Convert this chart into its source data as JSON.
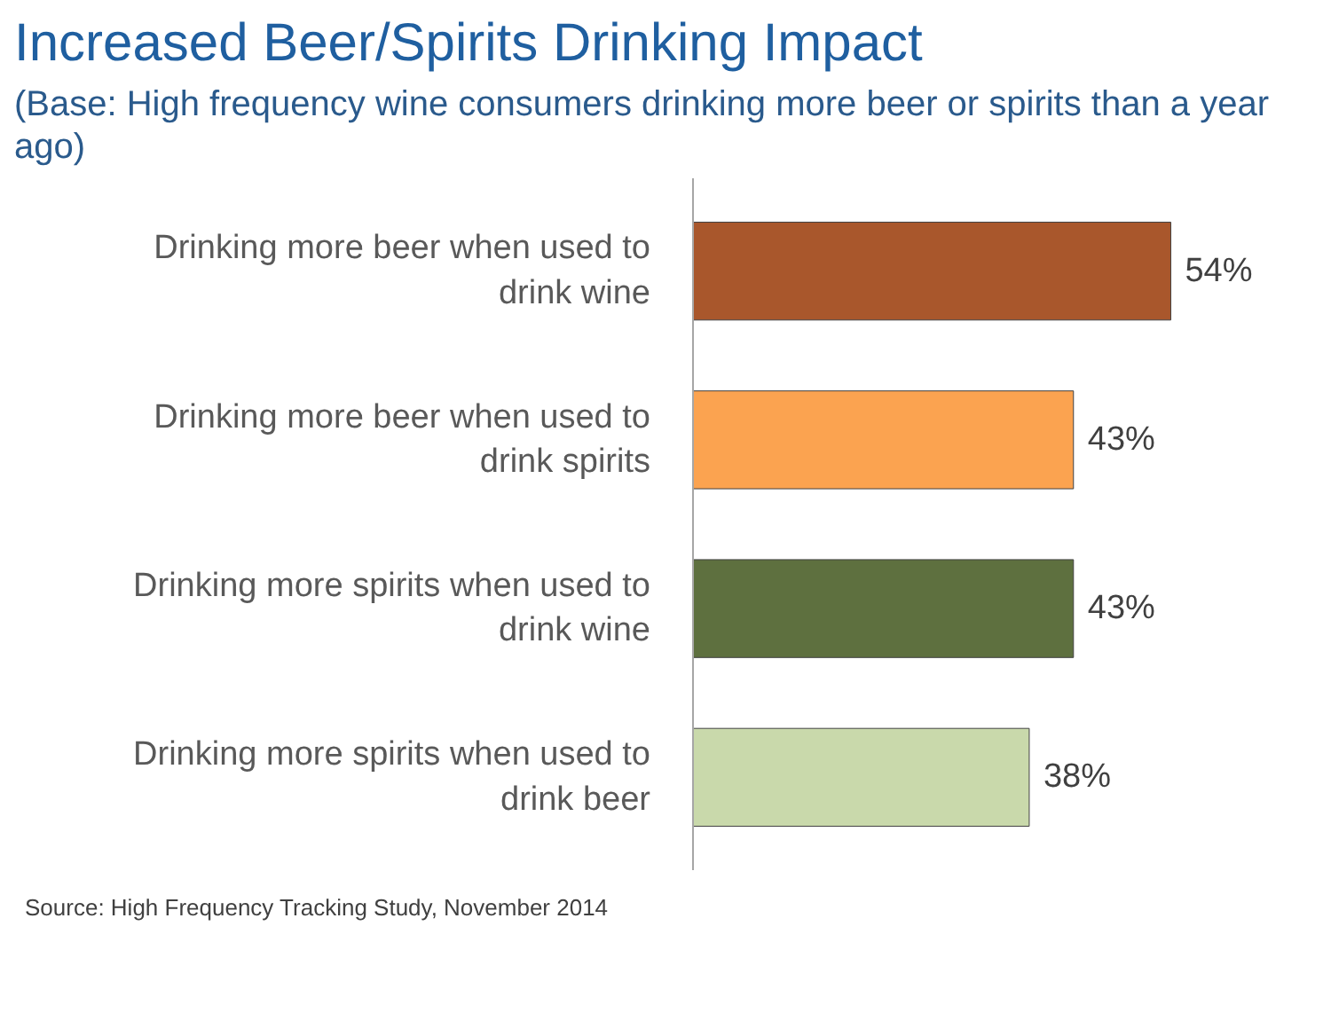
{
  "chart_data": {
    "type": "bar",
    "orientation": "horizontal",
    "title": "Increased Beer/Spirits Drinking Impact",
    "subtitle": "(Base: High frequency wine consumers drinking more beer or spirits than a year ago)",
    "categories": [
      "Drinking more beer when used to drink wine",
      "Drinking more beer when used to drink spirits",
      "Drinking more spirits when used to drink wine",
      "Drinking more spirits when used to drink beer"
    ],
    "values": [
      54,
      43,
      43,
      38
    ],
    "colors": [
      "#a9572c",
      "#fba350",
      "#5e703f",
      "#c9d9ab"
    ],
    "value_labels": [
      "54%",
      "43%",
      "43%",
      "38%"
    ],
    "annotations": [
      "Source: High Frequency Tracking Study, November 2014"
    ],
    "grid": false
  }
}
